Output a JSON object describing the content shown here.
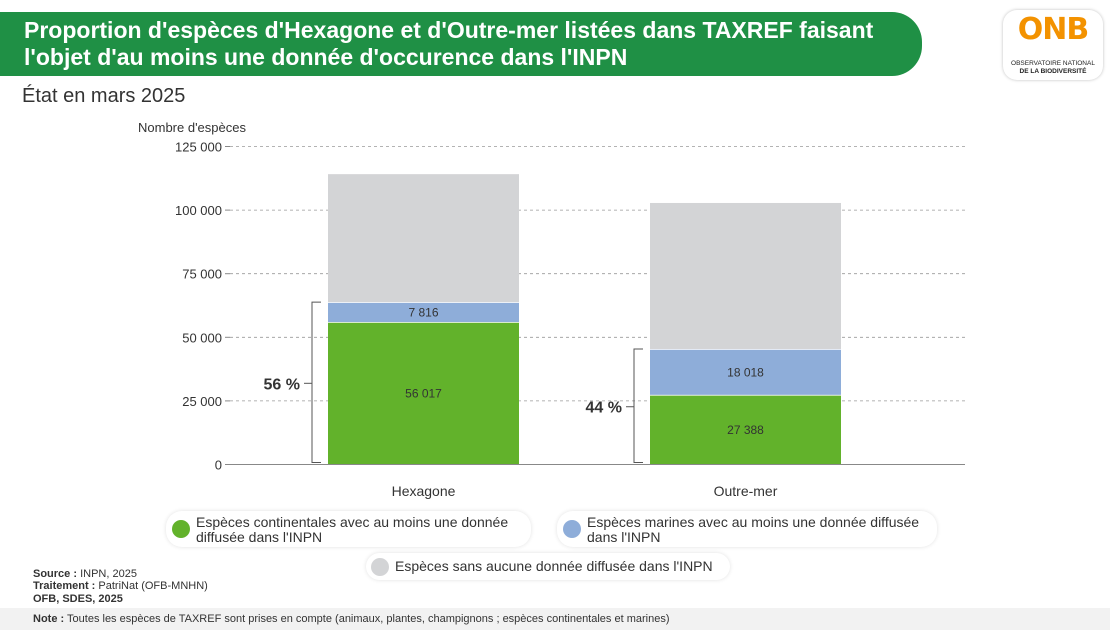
{
  "title": {
    "line1": "Proportion d'espèces d'Hexagone et d'Outre-mer listées dans TAXREF faisant",
    "line2": "l'objet d'au moins une donnée d'occurence dans l'INPN"
  },
  "logo": {
    "mark": "ONB",
    "line1": "OBSERVATOIRE NATIONAL",
    "line2": "DE LA BIODIVERSITÉ"
  },
  "subtitle": "État en mars 2025",
  "chart_data": {
    "type": "bar",
    "stacked": true,
    "ylabel": "Nombre d'espèces",
    "ylim": [
      0,
      125000
    ],
    "yticks": [
      0,
      25000,
      50000,
      75000,
      100000,
      125000
    ],
    "ytick_labels": [
      "0",
      "25 000",
      "50 000",
      "75 000",
      "100 000",
      "125 000"
    ],
    "grid": true,
    "categories": [
      "Hexagone",
      "Outre-mer"
    ],
    "series": [
      {
        "name": "Espèces continentales avec au moins une donnée diffusée dans l'INPN",
        "color": "#62b22b",
        "values": [
          56017,
          27388
        ],
        "labels": [
          "56 017",
          "27 388"
        ]
      },
      {
        "name": "Espèces marines avec au moins une donnée diffusée dans l'INPN",
        "color": "#8eadd9",
        "values": [
          7816,
          18018
        ],
        "labels": [
          "7 816",
          "18 018"
        ]
      },
      {
        "name": "Espèces sans aucune donnée diffusée dans l'INPN",
        "color": "#d3d4d6",
        "values": [
          50300,
          57400
        ]
      }
    ],
    "brackets": [
      "56 %",
      "44 %"
    ],
    "legend": [
      {
        "line1": "Espèces continentales avec au moins une donnée",
        "line2": "diffusée dans l'INPN",
        "color": "#62b22b"
      },
      {
        "line1": "Espèces marines avec au moins une donnée diffusée",
        "line2": "dans l'INPN",
        "color": "#8eadd9"
      },
      {
        "line1": "Espèces sans aucune donnée diffusée dans l'INPN",
        "color": "#d3d4d6"
      }
    ]
  },
  "footer": {
    "source_label": "Source :",
    "source_text": "INPN, 2025",
    "treatment_label": "Traitement :",
    "treatment_text": "PatriNat (OFB-MNHN)",
    "credit": "OFB, SDES, 2025",
    "note_label": "Note :",
    "note_text": "Toutes les espèces de TAXREF sont prises en compte (animaux, plantes, champignons ; espèces continentales et marines)"
  }
}
